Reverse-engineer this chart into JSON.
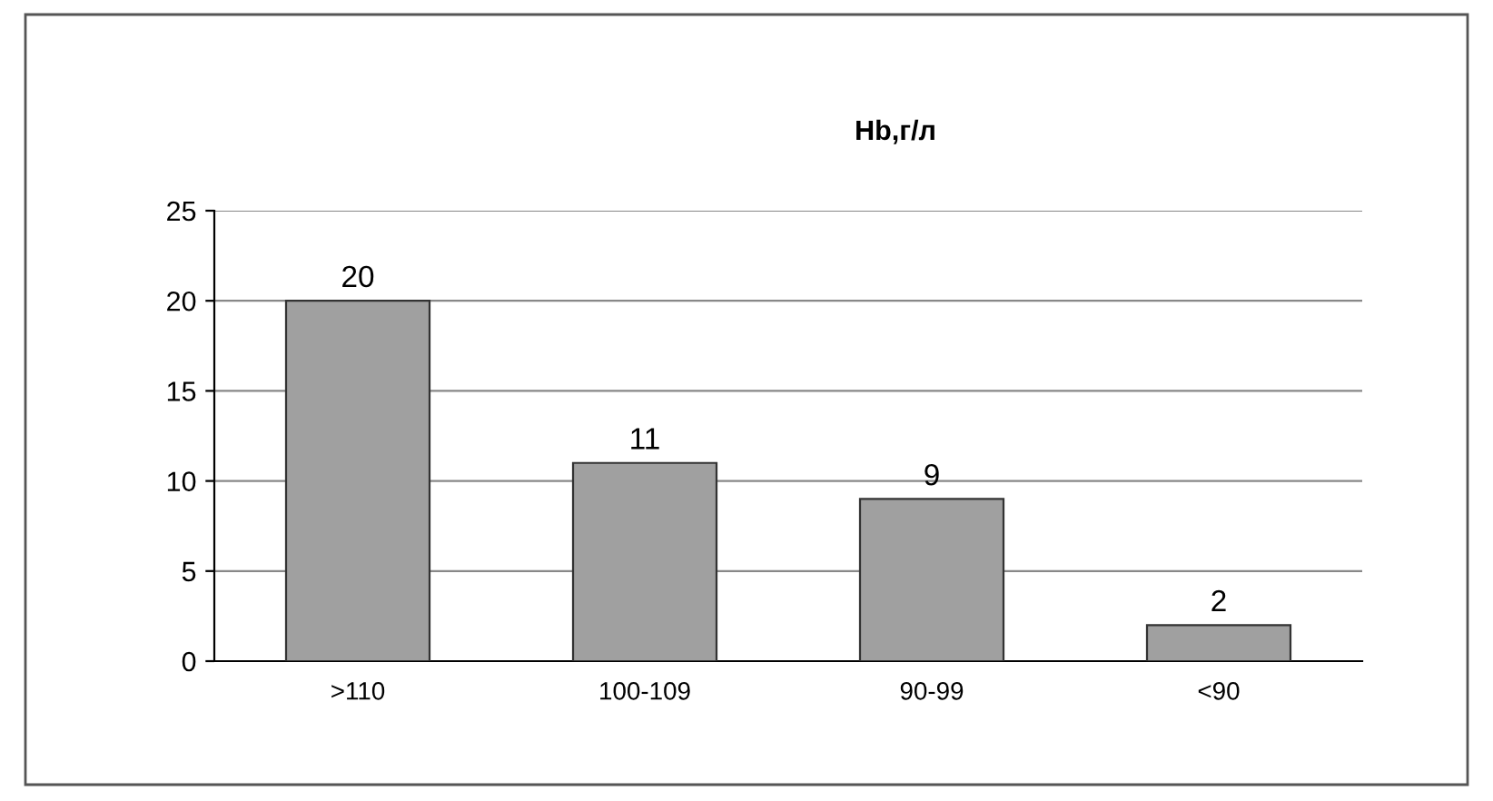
{
  "chart_data": {
    "type": "bar",
    "title": "Hb,г/л",
    "categories": [
      ">110",
      "100-109",
      "90-99",
      "<90"
    ],
    "values": [
      20,
      11,
      9,
      2
    ],
    "color": "#a0a0a0",
    "ylim": [
      0,
      25
    ],
    "yticks": [
      0,
      5,
      10,
      15,
      20,
      25
    ],
    "grid": "y",
    "data_labels": true,
    "legend": false
  }
}
